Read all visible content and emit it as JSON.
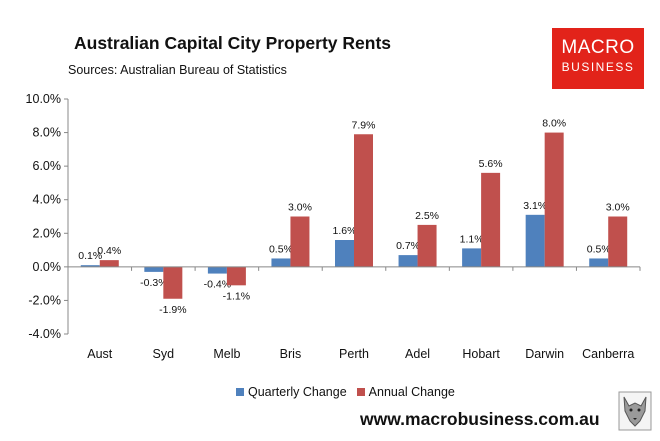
{
  "header": {
    "title": "Australian Capital City Property Rents",
    "subtitle": "Sources: Australian Bureau of Statistics"
  },
  "logo": {
    "line1": "MACRO",
    "line2": "BUSINESS"
  },
  "footer": {
    "website": "www.macrobusiness.com.au"
  },
  "colors": {
    "quarterly": "#4f81bd",
    "annual": "#c0504d",
    "logo_bg": "#e2231a",
    "axis": "#888888"
  },
  "chart_data": {
    "type": "bar",
    "title": "Australian Capital City Property Rents",
    "subtitle": "Sources: Australian Bureau of Statistics",
    "categories": [
      "Aust",
      "Syd",
      "Melb",
      "Bris",
      "Perth",
      "Adel",
      "Hobart",
      "Darwin",
      "Canberra"
    ],
    "series": [
      {
        "name": "Quarterly Change",
        "values": [
          0.1,
          -0.3,
          -0.4,
          0.5,
          1.6,
          0.7,
          1.1,
          3.1,
          0.5
        ],
        "labels": [
          "0.1%",
          "-0.3%",
          "-0.4%",
          "0.5%",
          "1.6%",
          "0.7%",
          "1.1%",
          "3.1%",
          "0.5%"
        ]
      },
      {
        "name": "Annual Change",
        "values": [
          0.4,
          -1.9,
          -1.1,
          3.0,
          7.9,
          2.5,
          5.6,
          8.0,
          3.0
        ],
        "labels": [
          "0.4%",
          "-1.9%",
          "-1.1%",
          "3.0%",
          "7.9%",
          "2.5%",
          "5.6%",
          "8.0%",
          "3.0%"
        ]
      }
    ],
    "ylim": [
      -4.0,
      10.0
    ],
    "yticks": [
      -4.0,
      -2.0,
      0.0,
      2.0,
      4.0,
      6.0,
      8.0,
      10.0
    ],
    "ytick_labels": [
      "-4.0%",
      "-2.0%",
      "0.0%",
      "2.0%",
      "4.0%",
      "6.0%",
      "8.0%",
      "10.0%"
    ],
    "xlabel": "",
    "ylabel": "",
    "grid": false,
    "legend": "bottom"
  }
}
